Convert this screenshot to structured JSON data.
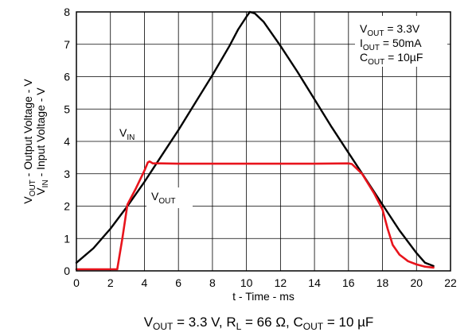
{
  "chart_data": {
    "type": "line",
    "xlabel": "t - Time - ms",
    "ylabel_line1": {
      "parts": [
        {
          "t": "V"
        },
        {
          "t": "OUT",
          "sub": true
        },
        {
          "t": " - Output Voltage - V"
        }
      ]
    },
    "ylabel_line2": {
      "parts": [
        {
          "t": "V"
        },
        {
          "t": "IN",
          "sub": true
        },
        {
          "t": " - Input Voltage - V"
        }
      ]
    },
    "xlim": [
      0,
      22
    ],
    "ylim": [
      0,
      8
    ],
    "xticks": [
      "0",
      "2",
      "4",
      "6",
      "8",
      "10",
      "12",
      "14",
      "16",
      "18",
      "20",
      "22"
    ],
    "yticks": [
      "0",
      "1",
      "2",
      "3",
      "4",
      "5",
      "6",
      "7",
      "8"
    ],
    "grid": true,
    "series": [
      {
        "name": "VIN",
        "color": "#000000",
        "x": [
          0,
          1,
          2,
          3,
          4,
          5,
          6,
          7,
          8,
          9,
          9.5,
          10,
          10.2,
          10.5,
          11,
          12,
          13,
          14,
          15,
          16,
          17,
          18,
          19,
          20,
          20.5,
          21
        ],
        "y": [
          0.25,
          0.7,
          1.3,
          2.0,
          2.75,
          3.55,
          4.35,
          5.2,
          6.05,
          6.95,
          7.45,
          7.85,
          8.0,
          7.95,
          7.7,
          6.95,
          6.15,
          5.3,
          4.45,
          3.65,
          2.85,
          2.05,
          1.25,
          0.55,
          0.25,
          0.15
        ]
      },
      {
        "name": "VOUT",
        "color": "#e8141c",
        "x": [
          0,
          2.4,
          2.7,
          3.0,
          3.5,
          4.0,
          4.2,
          4.3,
          4.5,
          5,
          6,
          8,
          10,
          12,
          14,
          16,
          16.2,
          16.8,
          17.5,
          18.0,
          18.3,
          18.6,
          19.0,
          19.5,
          20,
          20.5,
          21
        ],
        "y": [
          0.05,
          0.05,
          1.0,
          2.05,
          2.55,
          3.1,
          3.35,
          3.38,
          3.32,
          3.32,
          3.31,
          3.31,
          3.31,
          3.31,
          3.31,
          3.32,
          3.3,
          3.0,
          2.4,
          1.9,
          1.3,
          0.8,
          0.5,
          0.3,
          0.2,
          0.13,
          0.1
        ]
      }
    ],
    "annotations": [
      {
        "parts": [
          {
            "t": "V"
          },
          {
            "t": "IN",
            "sub": true
          }
        ]
      },
      {
        "parts": [
          {
            "t": "V"
          },
          {
            "t": "OUT",
            "sub": true
          }
        ]
      }
    ],
    "legend_box": [
      {
        "parts": [
          {
            "t": "V"
          },
          {
            "t": "OUT",
            "sub": true
          },
          {
            "t": " = 3.3V"
          }
        ]
      },
      {
        "parts": [
          {
            "t": "I"
          },
          {
            "t": "OUT",
            "sub": true
          },
          {
            "t": " = 50mA"
          }
        ]
      },
      {
        "parts": [
          {
            "t": "C"
          },
          {
            "t": "OUT",
            "sub": true
          },
          {
            "t": " = 10µF"
          }
        ]
      }
    ],
    "caption": {
      "parts": [
        {
          "t": "V"
        },
        {
          "t": "OUT",
          "sub": true
        },
        {
          "t": " = 3.3 V, R"
        },
        {
          "t": "L",
          "sub": true
        },
        {
          "t": " = 66 Ω, C"
        },
        {
          "t": "OUT",
          "sub": true
        },
        {
          "t": " = 10 µF"
        }
      ]
    }
  }
}
